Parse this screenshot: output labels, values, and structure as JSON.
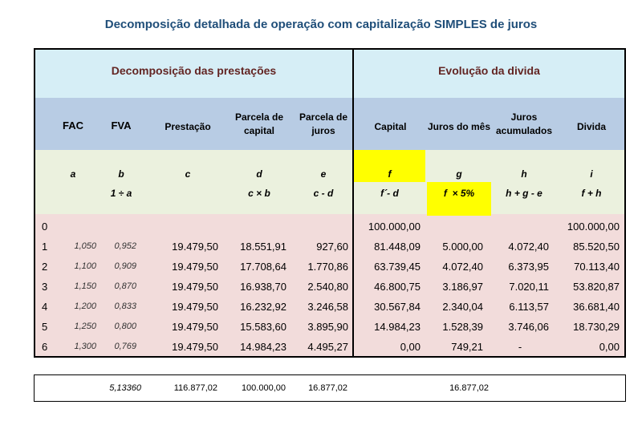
{
  "title": "Decomposição detalhada de operação com capitalização SIMPLES de juros",
  "sections": {
    "left": "Decomposição das prestações",
    "right": "Evolução da divida"
  },
  "headers": [
    "FAC",
    "FVA",
    "Prestação",
    "Parcela de capital",
    "Parcela de juros",
    "Capital",
    "Juros do mês",
    "Juros acumulados",
    "Divida"
  ],
  "headers_split": {
    "parcela_capital": [
      "Parcela de",
      "capital"
    ],
    "parcela_juros": [
      "Parcela de",
      "juros"
    ],
    "juros_acumulados": [
      "Juros",
      "acumulados"
    ]
  },
  "letters": [
    "a",
    "b",
    "c",
    "d",
    "e",
    "f",
    "g",
    "h",
    "i"
  ],
  "formulas": {
    "b": "1 ÷ a",
    "d": "c × b",
    "e": "c - d",
    "f": "f´- d",
    "g": "f  × 5%",
    "h": "h + g - e",
    "i": "f + h"
  },
  "rows": [
    {
      "n": "0",
      "fac": "",
      "fva": "",
      "prestacao": "",
      "parcela_capital": "",
      "parcela_juros": "",
      "capital": "100.000,00",
      "juros_mes": "",
      "juros_acum": "",
      "divida": "100.000,00"
    },
    {
      "n": "1",
      "fac": "1,050",
      "fva": "0,952",
      "prestacao": "19.479,50",
      "parcela_capital": "18.551,91",
      "parcela_juros": "927,60",
      "capital": "81.448,09",
      "juros_mes": "5.000,00",
      "juros_acum": "4.072,40",
      "divida": "85.520,50"
    },
    {
      "n": "2",
      "fac": "1,100",
      "fva": "0,909",
      "prestacao": "19.479,50",
      "parcela_capital": "17.708,64",
      "parcela_juros": "1.770,86",
      "capital": "63.739,45",
      "juros_mes": "4.072,40",
      "juros_acum": "6.373,95",
      "divida": "70.113,40"
    },
    {
      "n": "3",
      "fac": "1,150",
      "fva": "0,870",
      "prestacao": "19.479,50",
      "parcela_capital": "16.938,70",
      "parcela_juros": "2.540,80",
      "capital": "46.800,75",
      "juros_mes": "3.186,97",
      "juros_acum": "7.020,11",
      "divida": "53.820,87"
    },
    {
      "n": "4",
      "fac": "1,200",
      "fva": "0,833",
      "prestacao": "19.479,50",
      "parcela_capital": "16.232,92",
      "parcela_juros": "3.246,58",
      "capital": "30.567,84",
      "juros_mes": "2.340,04",
      "juros_acum": "6.113,57",
      "divida": "36.681,40"
    },
    {
      "n": "5",
      "fac": "1,250",
      "fva": "0,800",
      "prestacao": "19.479,50",
      "parcela_capital": "15.583,60",
      "parcela_juros": "3.895,90",
      "capital": "14.984,23",
      "juros_mes": "1.528,39",
      "juros_acum": "3.746,06",
      "divida": "18.730,29"
    },
    {
      "n": "6",
      "fac": "1,300",
      "fva": "0,769",
      "prestacao": "19.479,50",
      "parcela_capital": "14.984,23",
      "parcela_juros": "4.495,27",
      "capital": "0,00",
      "juros_mes": "749,21",
      "juros_acum": "-",
      "divida": "0,00"
    }
  ],
  "totals": {
    "fva": "5,13360",
    "prestacao": "116.877,02",
    "parcela_capital": "100.000,00",
    "parcela_juros": "16.877,02",
    "juros_mes": "16.877,02"
  },
  "colors": {
    "title": "#1f4e79",
    "section_header": "#632523",
    "band1": "#d6eef6",
    "band2": "#b8cce4",
    "band3": "#ebf1de",
    "band4": "#f2dcdb",
    "highlight": "#ffff00"
  }
}
